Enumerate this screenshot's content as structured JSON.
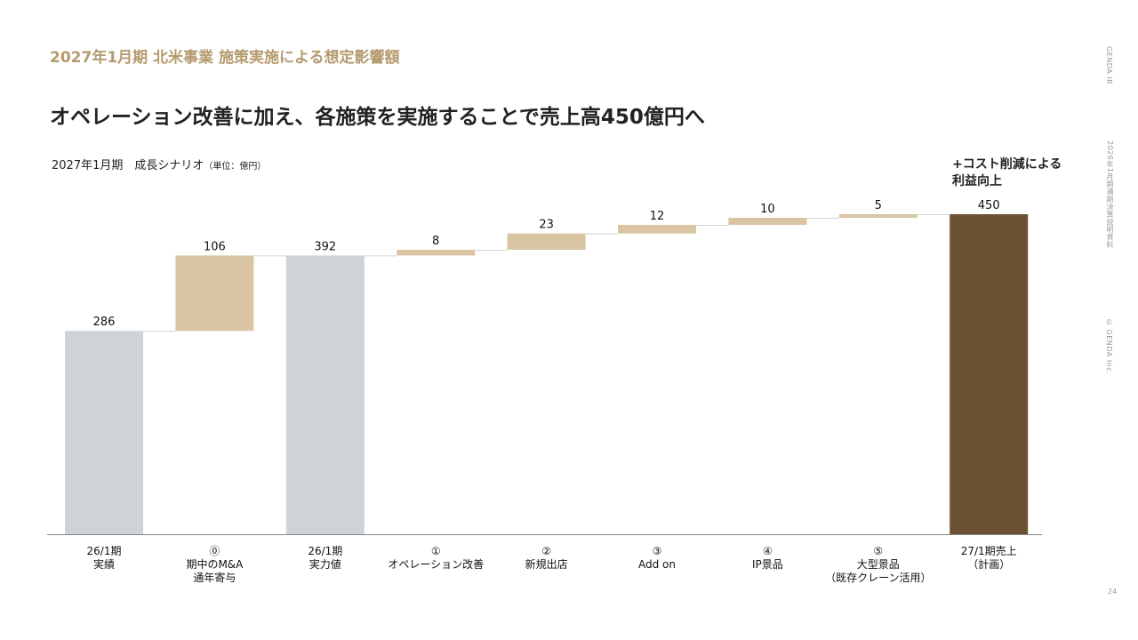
{
  "header": {
    "kicker": "2027年1月期 北米事業 施策実施による想定影響額",
    "headline": "オペレーション改善に加え、各施策を実施することで売上高450億円へ"
  },
  "chart_title": {
    "main": "2027年1月期　成長シナリオ",
    "unit": "（単位：億円）"
  },
  "annotation": {
    "line1": "+コスト削減による",
    "line2": "利益向上"
  },
  "side": {
    "top": "GENDA IR",
    "middle": "2026年1月期通期決算説明資料",
    "bottom": "© GENDA Inc."
  },
  "page_number": "24",
  "colors": {
    "actual": "#cfd3d8",
    "increase": "#d9c4a3",
    "plan": "#6b5232",
    "connector": "#d4d4d4",
    "axis": "#888888"
  },
  "chart_data": {
    "type": "bar",
    "subtype": "waterfall",
    "ylim": [
      0,
      450
    ],
    "categories": [
      [
        "26/1期",
        "実績"
      ],
      [
        "⓪",
        "期中のM&A",
        "通年寄与"
      ],
      [
        "26/1期",
        "実力値"
      ],
      [
        "①",
        "オペレーション改善"
      ],
      [
        "②",
        "新規出店"
      ],
      [
        "③",
        "Add on"
      ],
      [
        "④",
        "IP景品"
      ],
      [
        "⑤",
        "大型景品",
        "（既存クレーン活用）"
      ],
      [
        "27/1期売上",
        "（計画）"
      ]
    ],
    "kinds": [
      "actual",
      "increase",
      "actual",
      "increase",
      "increase",
      "increase",
      "increase",
      "increase",
      "plan"
    ],
    "values": [
      286,
      106,
      392,
      8,
      23,
      12,
      10,
      5,
      450
    ],
    "bases": [
      0,
      286,
      0,
      392,
      400,
      423,
      435,
      445,
      0
    ],
    "labels": [
      "286",
      "106",
      "392",
      "8",
      "23",
      "12",
      "10",
      "5",
      "450"
    ]
  }
}
